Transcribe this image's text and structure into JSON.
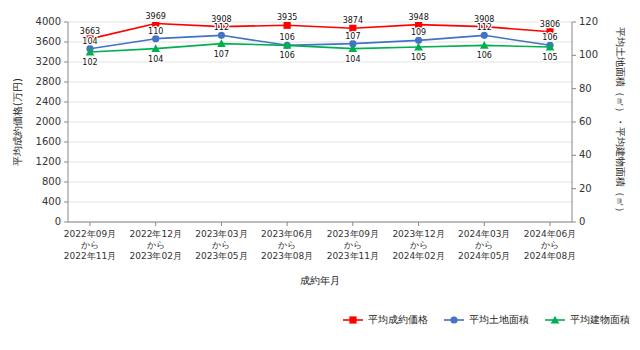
{
  "chart_data": {
    "type": "line",
    "xlabel": "成約年月",
    "ylabel": "平均成約価格(万円)",
    "y2label": "平均土地面積（㎡）・平均建物面積（㎡）",
    "categories": [
      [
        "2022年09月",
        "から",
        "2022年11月"
      ],
      [
        "2022年12月",
        "から",
        "2023年02月"
      ],
      [
        "2023年03月",
        "から",
        "2023年05月"
      ],
      [
        "2023年06月",
        "から",
        "2023年08月"
      ],
      [
        "2023年09月",
        "から",
        "2023年11月"
      ],
      [
        "2023年12月",
        "から",
        "2024年02月"
      ],
      [
        "2024年03月",
        "から",
        "2024年05月"
      ],
      [
        "2024年06月",
        "から",
        "2024年08月"
      ]
    ],
    "series": [
      {
        "name": "平均成約価格",
        "color": "#ff0000",
        "marker": "square",
        "values": [
          3663,
          3969,
          3908,
          3935,
          3874,
          3948,
          3908,
          3806
        ]
      },
      {
        "name": "平均土地面積",
        "color": "#4472c4",
        "marker": "circle",
        "axis": "y2",
        "values": [
          104,
          110,
          112,
          106,
          107,
          109,
          112,
          106
        ]
      },
      {
        "name": "平均建物面積",
        "color": "#00b050",
        "marker": "triangle",
        "axis": "y2",
        "values": [
          102,
          104,
          107,
          106,
          104,
          105,
          106,
          105
        ]
      }
    ],
    "ylim": [
      0,
      4000
    ],
    "yticks": [
      0,
      400,
      800,
      1200,
      1600,
      2000,
      2400,
      2800,
      3200,
      3600,
      4000
    ],
    "y2lim": [
      0,
      120
    ],
    "y2ticks": [
      0,
      20,
      40,
      60,
      80,
      100,
      120
    ],
    "grid": true,
    "legend": "bottom-right",
    "data_labels": true
  }
}
